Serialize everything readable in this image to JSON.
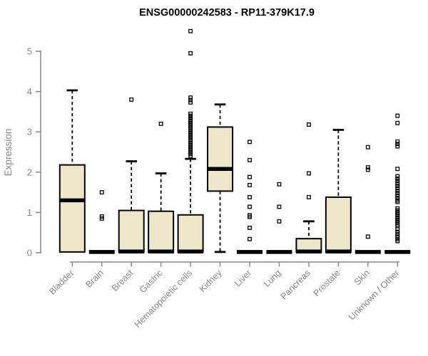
{
  "page": {
    "background": "#ffffff"
  },
  "chart_data": {
    "type": "box",
    "title": "ENSG00000242583 - RP11-379K17.9",
    "ylabel": "Expression",
    "xlabel": "",
    "ylim": [
      0,
      5.6
    ],
    "yticks": [
      0,
      1,
      2,
      3,
      4,
      5
    ],
    "grid": false,
    "legend": false,
    "categories": [
      "Bladder",
      "Brain",
      "Breast",
      "Gastric",
      "Hematopoietic cells",
      "Kidney",
      "Liver",
      "Lung",
      "Pancreas",
      "Prostate",
      "Skin",
      "Unknown / Other"
    ],
    "boxes": [
      {
        "category": "Bladder",
        "whisker_low": 0,
        "q1": 0.02,
        "median": 1.3,
        "q3": 2.18,
        "whisker_high": 4.03,
        "outliers": []
      },
      {
        "category": "Brain",
        "whisker_low": 0,
        "q1": 0,
        "median": 0.02,
        "q3": 0.02,
        "whisker_high": 0.02,
        "outliers": [
          1.5,
          0.9,
          0.85
        ]
      },
      {
        "category": "Breast",
        "whisker_low": 0,
        "q1": 0.02,
        "median": 0.03,
        "q3": 1.05,
        "whisker_high": 2.27,
        "outliers": [
          3.8
        ]
      },
      {
        "category": "Gastric",
        "whisker_low": 0,
        "q1": 0.02,
        "median": 0.03,
        "q3": 1.03,
        "whisker_high": 1.97,
        "outliers": [
          3.2
        ]
      },
      {
        "category": "Hematopoietic cells",
        "whisker_low": 0,
        "q1": 0.02,
        "median": 0.03,
        "q3": 0.94,
        "whisker_high": 2.33,
        "outliers": [
          5.5,
          4.95,
          3.85,
          3.79,
          3.73,
          3.45,
          3.4,
          3.35,
          3.3,
          3.25,
          3.2,
          3.15,
          3.1,
          3.05,
          3.0,
          2.95,
          2.9,
          2.85,
          2.8,
          2.75,
          2.7,
          2.65,
          2.6,
          2.55,
          2.5,
          2.45,
          2.4
        ]
      },
      {
        "category": "Kidney",
        "whisker_low": 0.02,
        "q1": 1.53,
        "median": 2.08,
        "q3": 3.12,
        "whisker_high": 3.68,
        "outliers": []
      },
      {
        "category": "Liver",
        "whisker_low": 0,
        "q1": 0,
        "median": 0.02,
        "q3": 0.02,
        "whisker_high": 0.02,
        "outliers": [
          2.75,
          2.3,
          1.88,
          1.68,
          1.38,
          1.14,
          0.93,
          0.89,
          0.62,
          0.34
        ]
      },
      {
        "category": "Lung",
        "whisker_low": 0,
        "q1": 0,
        "median": 0.02,
        "q3": 0.02,
        "whisker_high": 0.02,
        "outliers": [
          1.7,
          1.14,
          0.78
        ]
      },
      {
        "category": "Pancreas",
        "whisker_low": 0,
        "q1": 0.02,
        "median": 0.03,
        "q3": 0.35,
        "whisker_high": 0.78,
        "outliers": [
          3.18,
          1.97,
          1.38
        ]
      },
      {
        "category": "Prostate",
        "whisker_low": 0,
        "q1": 0.02,
        "median": 0.03,
        "q3": 1.38,
        "whisker_high": 3.05,
        "outliers": []
      },
      {
        "category": "Skin",
        "whisker_low": 0,
        "q1": 0,
        "median": 0.02,
        "q3": 0.02,
        "whisker_high": 0.02,
        "outliers": [
          2.62,
          2.12,
          2.06,
          0.4
        ]
      },
      {
        "category": "Unknown / Other",
        "whisker_low": 0,
        "q1": 0,
        "median": 0.02,
        "q3": 0.02,
        "whisker_high": 0.02,
        "outliers": [
          3.4,
          3.22,
          2.76,
          2.7,
          2.64,
          2.08,
          1.9,
          1.84,
          1.78,
          1.72,
          1.66,
          1.6,
          1.54,
          1.48,
          1.42,
          1.36,
          1.3,
          1.26,
          1.1,
          1.05,
          1.0,
          0.95,
          0.9,
          0.85,
          0.8,
          0.75,
          0.7,
          0.66,
          0.58,
          0.52,
          0.46,
          0.4,
          0.34,
          0.29
        ]
      }
    ],
    "colors": {
      "box_fill": "#ede7c9",
      "box_stroke": "#000000",
      "median": "#000000",
      "whisker": "#000000",
      "outlier": "#000000",
      "axis": "#888888",
      "tick_label": "#898989",
      "axis_label": "#898989",
      "title": "#000000",
      "background": "#ffffff"
    }
  }
}
